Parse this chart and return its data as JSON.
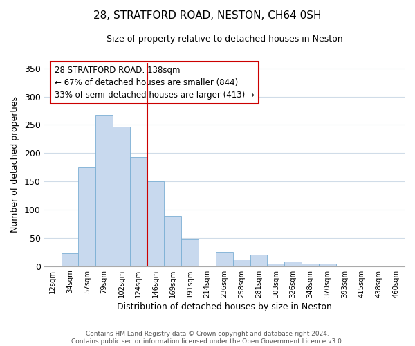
{
  "title": "28, STRATFORD ROAD, NESTON, CH64 0SH",
  "subtitle": "Size of property relative to detached houses in Neston",
  "xlabel": "Distribution of detached houses by size in Neston",
  "ylabel": "Number of detached properties",
  "bar_labels": [
    "12sqm",
    "34sqm",
    "57sqm",
    "79sqm",
    "102sqm",
    "124sqm",
    "146sqm",
    "169sqm",
    "191sqm",
    "214sqm",
    "236sqm",
    "258sqm",
    "281sqm",
    "303sqm",
    "326sqm",
    "348sqm",
    "370sqm",
    "393sqm",
    "415sqm",
    "438sqm",
    "460sqm"
  ],
  "bar_values": [
    0,
    23,
    175,
    268,
    247,
    193,
    150,
    89,
    47,
    0,
    25,
    12,
    20,
    5,
    8,
    5,
    5,
    0,
    0,
    0,
    0
  ],
  "bar_color": "#c8d9ee",
  "bar_edge_color": "#7bafd4",
  "vline_x_index": 6,
  "vline_color": "#cc0000",
  "ylim": [
    0,
    360
  ],
  "yticks": [
    0,
    50,
    100,
    150,
    200,
    250,
    300,
    350
  ],
  "annotation_text": "28 STRATFORD ROAD: 138sqm\n← 67% of detached houses are smaller (844)\n33% of semi-detached houses are larger (413) →",
  "annotation_box_edgecolor": "#cc0000",
  "footer_line1": "Contains HM Land Registry data © Crown copyright and database right 2024.",
  "footer_line2": "Contains public sector information licensed under the Open Government Licence v3.0.",
  "background_color": "#ffffff",
  "grid_color": "#d0dce8"
}
